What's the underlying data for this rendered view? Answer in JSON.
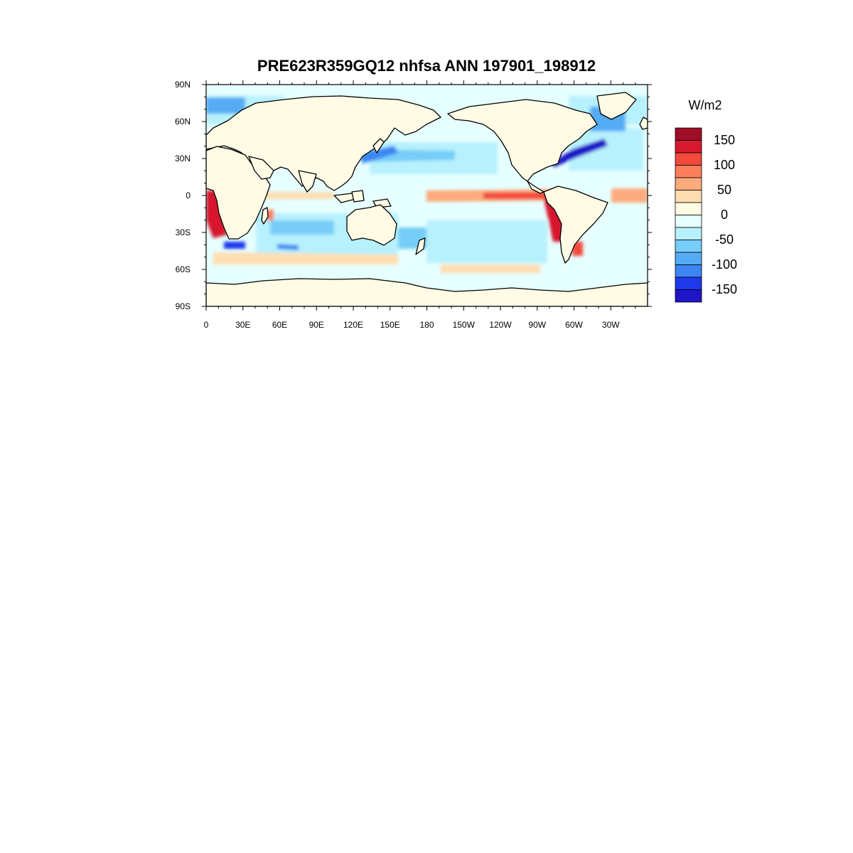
{
  "title": "PRE623R359GQ12 nhfsa ANN 197901_198912",
  "units": "W/m2",
  "lat_ticks": [
    "90N",
    "60N",
    "30N",
    "0",
    "30S",
    "60S",
    "90S"
  ],
  "lon_ticks": [
    "0",
    "30E",
    "60E",
    "90E",
    "120E",
    "150E",
    "180",
    "150W",
    "120W",
    "90W",
    "60W",
    "30W"
  ],
  "colorbar": {
    "colors": [
      "#9f0d27",
      "#d7192f",
      "#f24a3c",
      "#fb7f5c",
      "#fdaa7c",
      "#feddb0",
      "#fffbe5",
      "#e6ffff",
      "#b7f1fd",
      "#76cdf8",
      "#55acf5",
      "#3b86f2",
      "#1e39ec",
      "#1e14c8"
    ],
    "labels": [
      "150",
      "100",
      "50",
      "0",
      "-50",
      "-100",
      "-150"
    ]
  },
  "colors": {
    "land": "#fffbe5",
    "ocean_weak_negative": "#e6ffff",
    "warm_equatorial": "#fdaa7c",
    "strong_positive": "#d7192f",
    "strong_negative": "#1e14c8"
  }
}
